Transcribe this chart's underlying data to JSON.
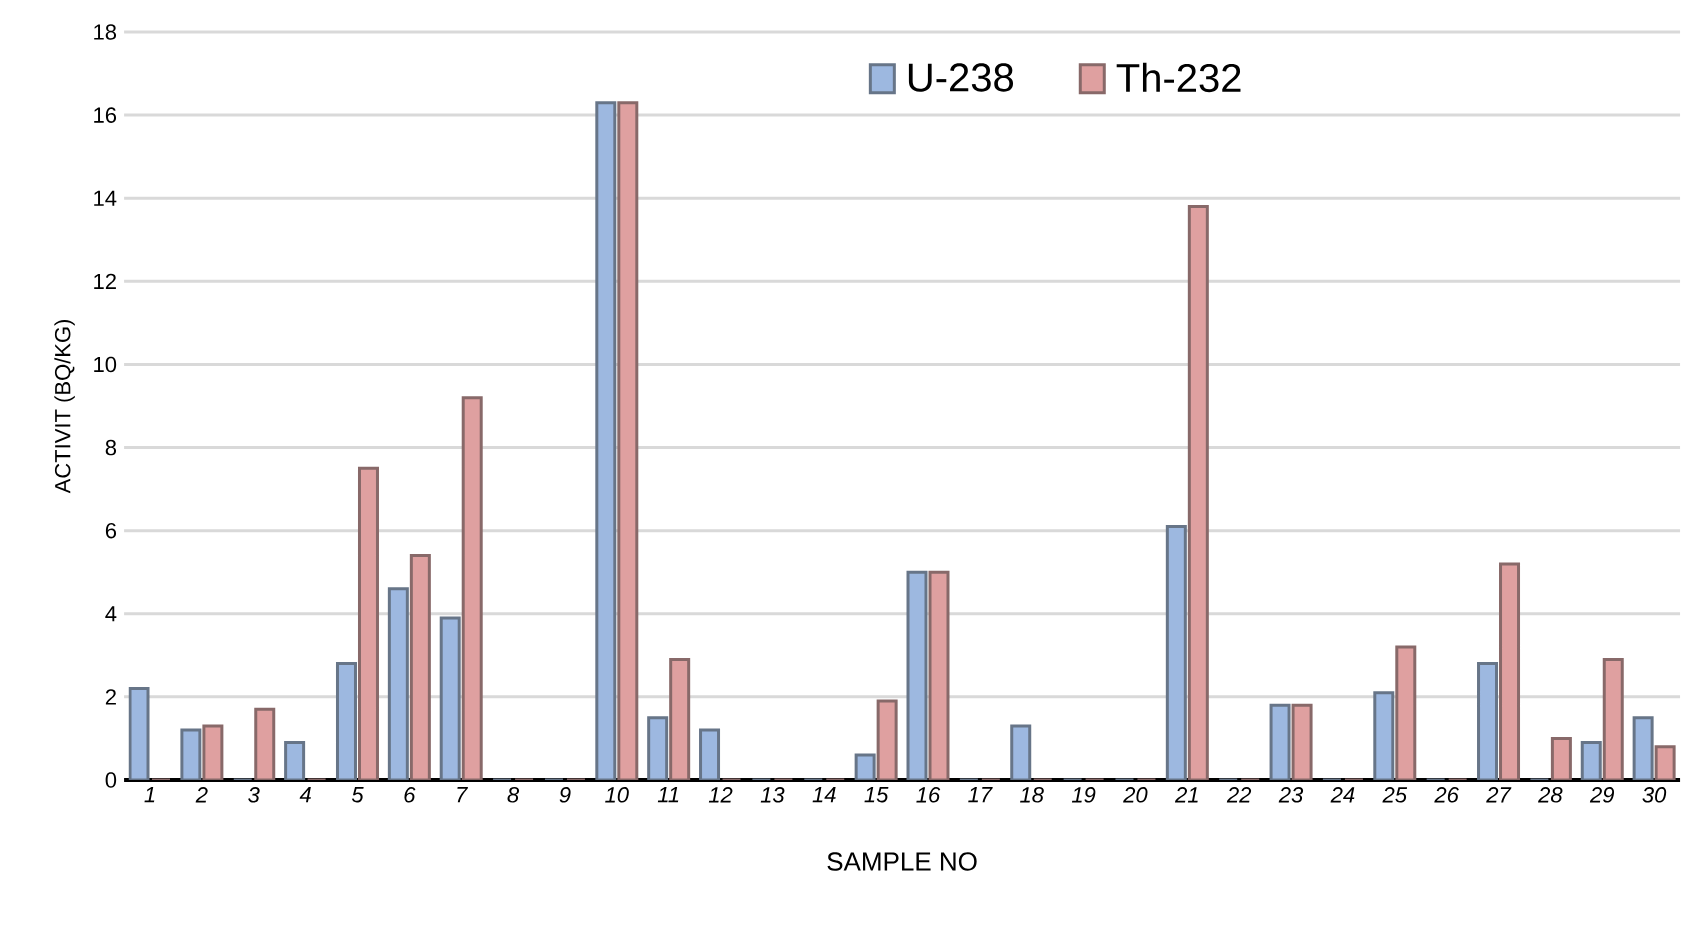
{
  "chart_data": {
    "type": "bar",
    "xlabel": "SAMPLE NO",
    "ylabel": "ACTIVIT (BQ/KG)",
    "categories": [
      "1",
      "2",
      "3",
      "4",
      "5",
      "6",
      "7",
      "8",
      "9",
      "10",
      "11",
      "12",
      "13",
      "14",
      "15",
      "16",
      "17",
      "18",
      "19",
      "20",
      "21",
      "22",
      "23",
      "24",
      "25",
      "26",
      "27",
      "28",
      "29",
      "30"
    ],
    "series": [
      {
        "name": "U-238",
        "color": "#9db8e0",
        "values": [
          2.2,
          1.2,
          0,
          0.9,
          2.8,
          4.6,
          3.9,
          0,
          0,
          16.3,
          1.5,
          1.2,
          0,
          0,
          0.6,
          5.0,
          0,
          1.3,
          0,
          0,
          6.1,
          0,
          1.8,
          0,
          2.1,
          0,
          2.8,
          0,
          0.9,
          1.5
        ]
      },
      {
        "name": "Th-232",
        "color": "#dfa0a0",
        "values": [
          0,
          1.3,
          1.7,
          0,
          7.5,
          5.4,
          9.2,
          0,
          0,
          16.3,
          2.9,
          0,
          0,
          0,
          1.9,
          5.0,
          0,
          0,
          0,
          0,
          13.8,
          0,
          1.8,
          0,
          3.2,
          0,
          5.2,
          1.0,
          2.9,
          0.8
        ]
      }
    ],
    "ylim": [
      0,
      18
    ],
    "yticks": [
      0,
      2,
      4,
      6,
      8,
      10,
      12,
      14,
      16,
      18
    ],
    "grid": "y",
    "legend": "top"
  }
}
